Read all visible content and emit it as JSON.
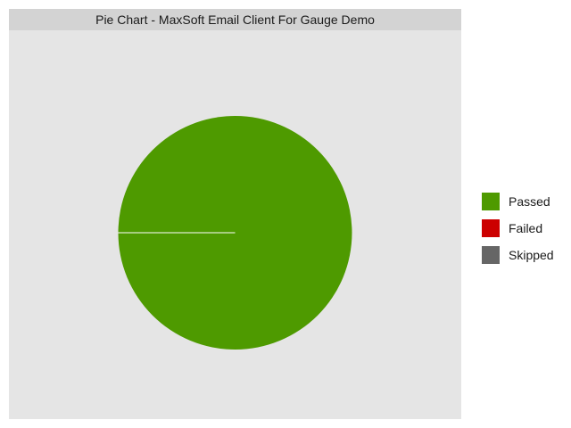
{
  "chart_data": {
    "type": "pie",
    "title": "Pie Chart - MaxSoft Email Client For Gauge Demo",
    "categories": [
      "Passed",
      "Failed",
      "Skipped"
    ],
    "values": [
      1,
      0,
      0
    ],
    "colors": [
      "#4e9a00",
      "#cc0000",
      "#666666"
    ],
    "legend_position": "right",
    "slice_boundary_color": "#ffffff"
  }
}
